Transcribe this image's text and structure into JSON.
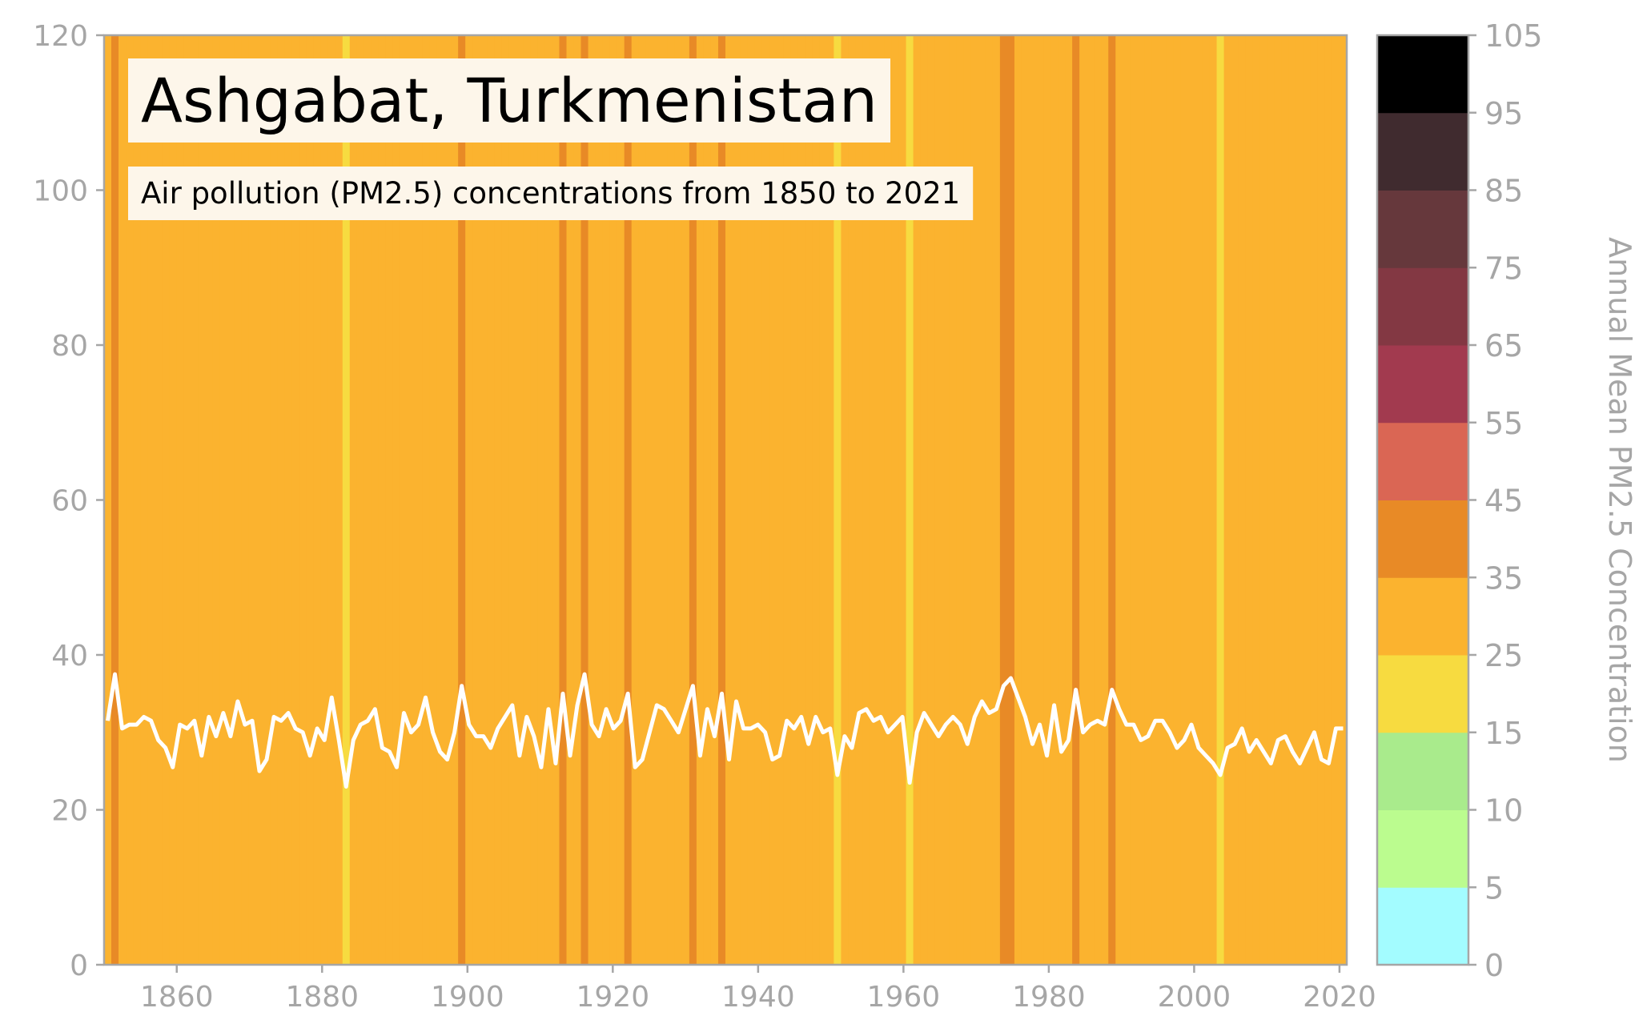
{
  "chart_data": {
    "type": "line",
    "title": "Ashgabat, Turkmenistan",
    "subtitle": "Air pollution (PM2.5) concentrations from 1850 to 2021",
    "xlabel": "",
    "ylabel": "",
    "xlim": [
      1850,
      2021
    ],
    "ylim": [
      0,
      120
    ],
    "x_ticks": [
      1860,
      1880,
      1900,
      1920,
      1940,
      1960,
      1980,
      2000,
      2020
    ],
    "y_ticks": [
      0,
      20,
      40,
      60,
      80,
      100,
      120
    ],
    "grid": false,
    "background_stripes": "one vertical stripe per year, colored by that year's PM2.5 concentration using the colorbar scale",
    "line_color": "#ffffff",
    "series": [
      {
        "x_start": 1850,
        "x_step": 1,
        "values": [
          31.5,
          37.5,
          30.5,
          31,
          31,
          32,
          31.5,
          29,
          28,
          25.5,
          31,
          30.5,
          31.5,
          27,
          32,
          29.5,
          32.5,
          29.5,
          34,
          31,
          31.5,
          25,
          26.5,
          32,
          31.5,
          32.5,
          30.5,
          30,
          27,
          30.5,
          29,
          34.5,
          29,
          23,
          29,
          31,
          31.5,
          33,
          28,
          27.5,
          25.5,
          32.5,
          30,
          31,
          34.5,
          30,
          27.5,
          26.5,
          30,
          36,
          31,
          29.5,
          29.5,
          28,
          30.5,
          32,
          33.5,
          27,
          32,
          29.5,
          25.5,
          33,
          26,
          35,
          27,
          33.5,
          37.5,
          31,
          29.5,
          33,
          30.5,
          31.5,
          35,
          25.5,
          26.5,
          30,
          33.5,
          33,
          31.5,
          30,
          33,
          36,
          27,
          33,
          29.5,
          35,
          26.5,
          34,
          30.5,
          30.5,
          31,
          30,
          26.5,
          27,
          31.5,
          30.5,
          32,
          28.5,
          32,
          30,
          30.5,
          24.5,
          29.5,
          28,
          32.5,
          33,
          31.5,
          32,
          30,
          31,
          32,
          23.5,
          30,
          32.5,
          31,
          29.5,
          31,
          32,
          31,
          28.5,
          32,
          34,
          32.5,
          33,
          36,
          37,
          34.5,
          32,
          28.5,
          31,
          27,
          33.5,
          27.5,
          29,
          35.5,
          30,
          31,
          31.5,
          31,
          35.5,
          33,
          31,
          31,
          29,
          29.5,
          31.5,
          31.5,
          30,
          28,
          29,
          31,
          28,
          27,
          26,
          24.5,
          28,
          28.5,
          30.5,
          27.5,
          29,
          27.5,
          26,
          29,
          29.5,
          27.5,
          26,
          28,
          30,
          26.5,
          26,
          30.5,
          30.5
        ]
      }
    ],
    "colorbar": {
      "label": "Annual Mean PM2.5 Concentration",
      "tick_labels": [
        "0",
        "5",
        "10",
        "15",
        "25",
        "35",
        "45",
        "55",
        "65",
        "75",
        "85",
        "95",
        "105"
      ],
      "bins": [
        {
          "min": 0,
          "max": 5,
          "color": "#a3fcff"
        },
        {
          "min": 5,
          "max": 10,
          "color": "#bbfc8f"
        },
        {
          "min": 10,
          "max": 15,
          "color": "#a9eb8c"
        },
        {
          "min": 15,
          "max": 25,
          "color": "#f7db40"
        },
        {
          "min": 25,
          "max": 35,
          "color": "#fbb32f"
        },
        {
          "min": 35,
          "max": 45,
          "color": "#e88a26"
        },
        {
          "min": 45,
          "max": 55,
          "color": "#da6654"
        },
        {
          "min": 55,
          "max": 65,
          "color": "#a23a4f"
        },
        {
          "min": 65,
          "max": 75,
          "color": "#833843"
        },
        {
          "min": 75,
          "max": 85,
          "color": "#66383c"
        },
        {
          "min": 85,
          "max": 95,
          "color": "#402b2f"
        },
        {
          "min": 95,
          "max": 105,
          "color": "#000000"
        }
      ]
    }
  }
}
